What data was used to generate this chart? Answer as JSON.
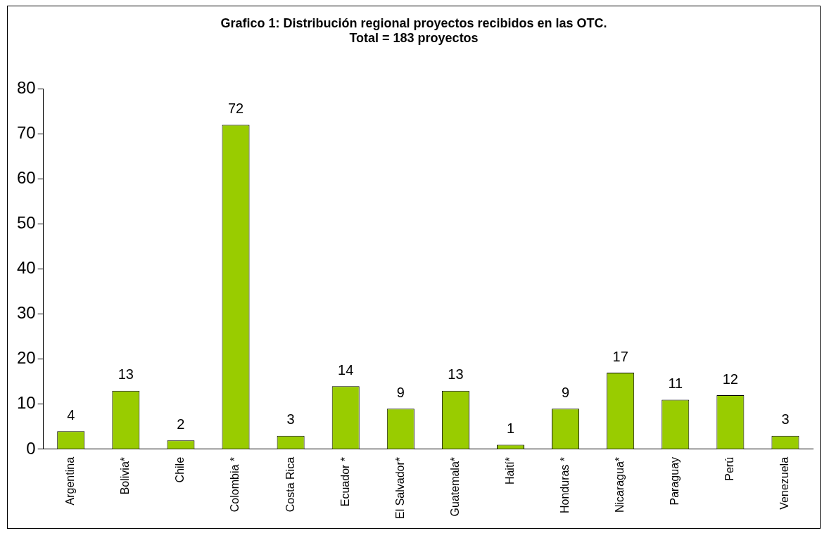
{
  "chart_data": {
    "type": "bar",
    "title": "Grafico 1: Distribución regional proyectos recibidos en las OTC.",
    "subtitle": "Total = 183 proyectos",
    "categories": [
      "Argentina",
      "Bolivia*",
      "Chile",
      "Colombia *",
      "Costa Rica",
      "Ecuador *",
      "El Salvador*",
      "Guatemala*",
      "Haití*",
      "Honduras *",
      "Nicaragua*",
      "Paraguay",
      "Perú",
      "Venezuela"
    ],
    "values": [
      4,
      13,
      2,
      72,
      3,
      14,
      9,
      13,
      1,
      9,
      17,
      11,
      12,
      3
    ],
    "color": "#99cc00",
    "ylim": [
      0,
      80
    ],
    "yticks": [
      0,
      10,
      20,
      30,
      40,
      50,
      60,
      70,
      80
    ],
    "grid": false,
    "legend": false,
    "data_labels": true
  }
}
